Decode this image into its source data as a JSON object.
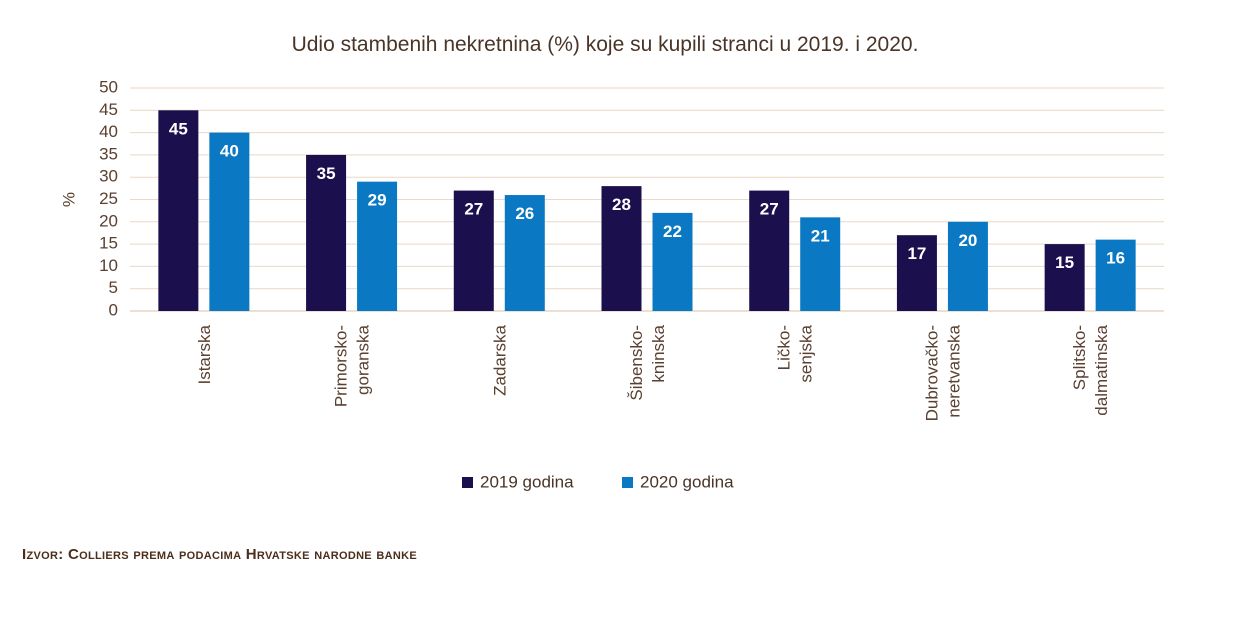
{
  "chart_data": {
    "type": "bar",
    "title": "Udio stambenih nekretnina (%) koje su kupili stranci u 2019. i 2020.",
    "ylabel": "%",
    "ylim": [
      0,
      50
    ],
    "yticks": [
      0,
      5,
      10,
      15,
      20,
      25,
      30,
      35,
      40,
      45,
      50
    ],
    "grid": true,
    "legend": "bottom",
    "categories": [
      [
        "Istarska"
      ],
      [
        "Primorsko-",
        "goranska"
      ],
      [
        "Zadarska"
      ],
      [
        "Šibensko-",
        "kninska"
      ],
      [
        "Ličko-",
        "senjska"
      ],
      [
        "Dubrovačko-",
        "neretvanska"
      ],
      [
        "Splitsko-",
        "dalmatinska"
      ]
    ],
    "series": [
      {
        "name": "2019 godina",
        "color": "#1b0f4d",
        "values": [
          45,
          35,
          27,
          28,
          27,
          17,
          15
        ]
      },
      {
        "name": "2020 godina",
        "color": "#0a78c3",
        "values": [
          40,
          29,
          26,
          22,
          21,
          20,
          16
        ]
      }
    ]
  },
  "source": "Izvor: Colliers prema podacima Hrvatske narodne banke"
}
